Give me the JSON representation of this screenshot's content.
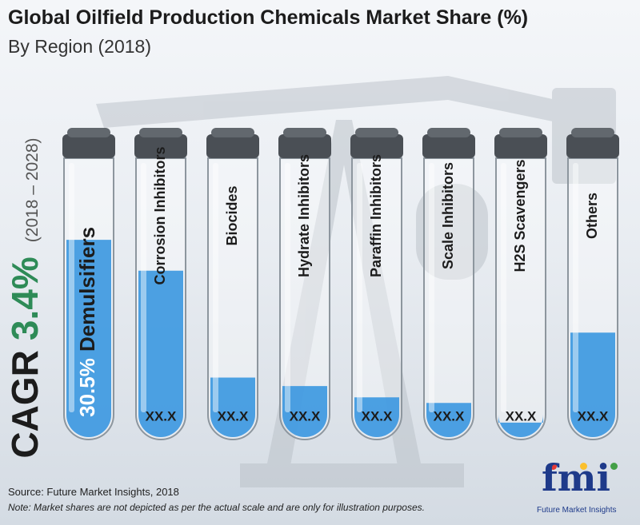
{
  "header": {
    "title": "Global Oilfield Production Chemicals Market Share (%)",
    "subtitle": "By Region (2018)"
  },
  "cagr": {
    "label": "CAGR",
    "value": "3.4%",
    "period": "(2018 – 2028)"
  },
  "chart_data": {
    "type": "bar",
    "categories": [
      "Demulsifiers",
      "Corrosion Inhibitors",
      "Biocides",
      "Hydrate Inhibitors",
      "Paraffin Inhibitors",
      "Scale Inhibitors",
      "H2S Scavengers",
      "Others"
    ],
    "value_labels": [
      "30.5%",
      "XX.X",
      "XX.X",
      "XX.X",
      "XX.X",
      "XX.X",
      "XX.X",
      "XX.X"
    ],
    "fill_levels": [
      0.71,
      0.6,
      0.22,
      0.19,
      0.15,
      0.13,
      0.06,
      0.38
    ],
    "fill_color": "#3a97e0",
    "title": "Global Oilfield Production Chemicals Market Share (%)",
    "subtitle": "By Region (2018)",
    "xlabel": "",
    "ylabel": ""
  },
  "footer": {
    "source": "Source: Future Market Insights, 2018",
    "note": "Note: Market shares are not depicted as per the actual scale and are only for illustration purposes."
  },
  "logo": {
    "text": "fmi",
    "subtext": "Future Market Insights"
  }
}
